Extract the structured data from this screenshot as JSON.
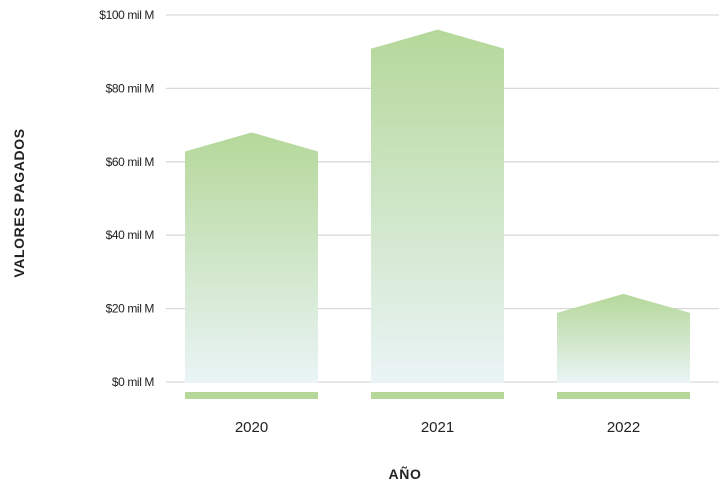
{
  "chart_data": {
    "type": "bar",
    "categories": [
      "2020",
      "2021",
      "2022"
    ],
    "values": [
      68,
      96,
      24
    ],
    "xlabel": "AÑO",
    "ylabel": "VALORES PAGADOS",
    "ylim": [
      0,
      100
    ],
    "yticks": [
      0,
      20,
      40,
      60,
      80,
      100
    ],
    "ytick_labels": [
      "$0 mil M",
      "$20 mil M",
      "$40 mil M",
      "$60 mil M",
      "$80 mil M",
      "$100 mil M"
    ],
    "grid": true,
    "legend": "none",
    "colors": {
      "bar_top": "#b5d89a",
      "bar_bottom": "#eaf4f6",
      "baseline_strip": "#b5d89a",
      "grid": "#d9d9d9",
      "text": "#222222"
    }
  }
}
